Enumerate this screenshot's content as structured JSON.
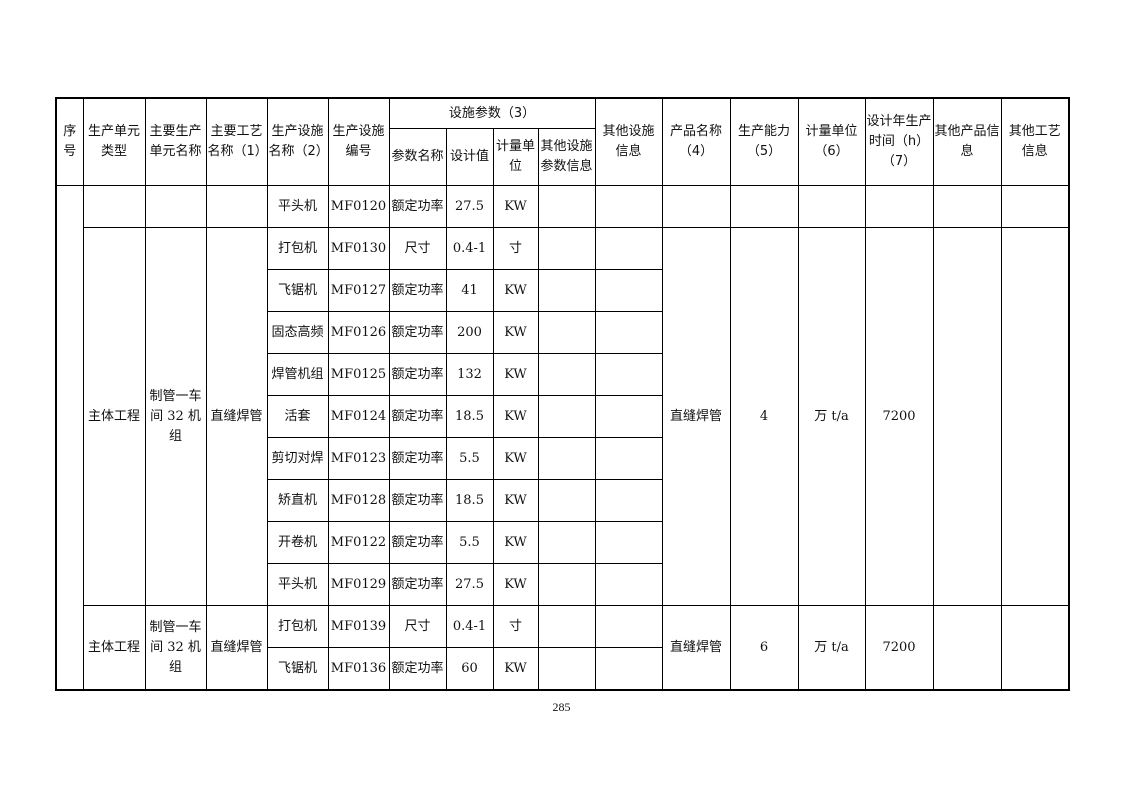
{
  "headers": {
    "seq": "序号",
    "unit_type": "生产单元类型",
    "unit_name": "主要生产单元名称",
    "process": "主要工艺名称（1）",
    "facility_name": "生产设施名称（2）",
    "facility_code": "生产设施编号",
    "params_group": "设施参数（3）",
    "param_name": "参数名称",
    "param_value": "设计值",
    "param_unit": "计量单位",
    "param_other": "其他设施参数信息",
    "facility_other": "其他设施信息",
    "product": "产品名称（4）",
    "capacity": "生产能力（5）",
    "capacity_unit": "计量单位（6）",
    "hours": "设计年生产时间（h）（7）",
    "product_other": "其他产品信息",
    "process_other": "其他工艺信息"
  },
  "groups": [
    {
      "unit_type": "",
      "unit_name": "",
      "process": "",
      "product": "",
      "capacity": "",
      "capacity_unit": "",
      "hours": "",
      "equipment": [
        {
          "name": "平头机",
          "code": "MF0120",
          "param": "额定功率",
          "value": "27.5",
          "unit": "KW"
        }
      ]
    },
    {
      "unit_type": "主体工程",
      "unit_name": "制管一车间 32 机组",
      "process": "直缝焊管",
      "product": "直缝焊管",
      "capacity": "4",
      "capacity_unit": "万 t/a",
      "hours": "7200",
      "equipment": [
        {
          "name": "打包机",
          "code": "MF0130",
          "param": "尺寸",
          "value": "0.4-1",
          "unit": "寸"
        },
        {
          "name": "飞锯机",
          "code": "MF0127",
          "param": "额定功率",
          "value": "41",
          "unit": "KW"
        },
        {
          "name": "固态高频",
          "code": "MF0126",
          "param": "额定功率",
          "value": "200",
          "unit": "KW"
        },
        {
          "name": "焊管机组",
          "code": "MF0125",
          "param": "额定功率",
          "value": "132",
          "unit": "KW"
        },
        {
          "name": "活套",
          "code": "MF0124",
          "param": "额定功率",
          "value": "18.5",
          "unit": "KW"
        },
        {
          "name": "剪切对焊",
          "code": "MF0123",
          "param": "额定功率",
          "value": "5.5",
          "unit": "KW"
        },
        {
          "name": "矫直机",
          "code": "MF0128",
          "param": "额定功率",
          "value": "18.5",
          "unit": "KW"
        },
        {
          "name": "开卷机",
          "code": "MF0122",
          "param": "额定功率",
          "value": "5.5",
          "unit": "KW"
        },
        {
          "name": "平头机",
          "code": "MF0129",
          "param": "额定功率",
          "value": "27.5",
          "unit": "KW"
        }
      ]
    },
    {
      "unit_type": "主体工程",
      "unit_name": "制管一车间 32 机组",
      "process": "直缝焊管",
      "product": "直缝焊管",
      "capacity": "6",
      "capacity_unit": "万 t/a",
      "hours": "7200",
      "equipment": [
        {
          "name": "打包机",
          "code": "MF0139",
          "param": "尺寸",
          "value": "0.4-1",
          "unit": "寸"
        },
        {
          "name": "飞锯机",
          "code": "MF0136",
          "param": "额定功率",
          "value": "60",
          "unit": "KW"
        }
      ]
    }
  ],
  "page_number": "285"
}
